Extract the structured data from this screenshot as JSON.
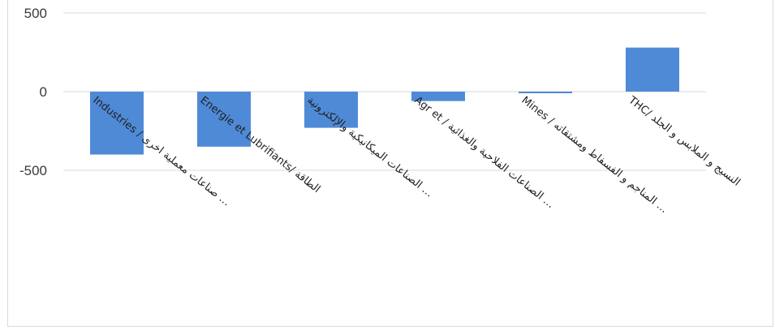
{
  "chart_data": {
    "type": "bar",
    "categories": [
      "Industries / صناعات معملية اخرى …",
      "Energie et Lubrifiants/ الطاقة",
      "الصناعات الميكانيكية والإلكترونية …",
      "Agr et / الصناعات الفلاحية والغذائية …",
      "Mines / المناجم و الفسفاط ومشتقاته …",
      "THC/ النسيج و الملابس و الجلد"
    ],
    "values": [
      -400,
      -350,
      -230,
      -60,
      -10,
      280
    ],
    "ylim": [
      -500,
      500
    ],
    "yticks": [
      500,
      0,
      -500
    ],
    "grid": true,
    "bar_color": "#4f8ad6",
    "grid_color": "#d9d9d9",
    "title": "",
    "xlabel": "",
    "ylabel": ""
  }
}
